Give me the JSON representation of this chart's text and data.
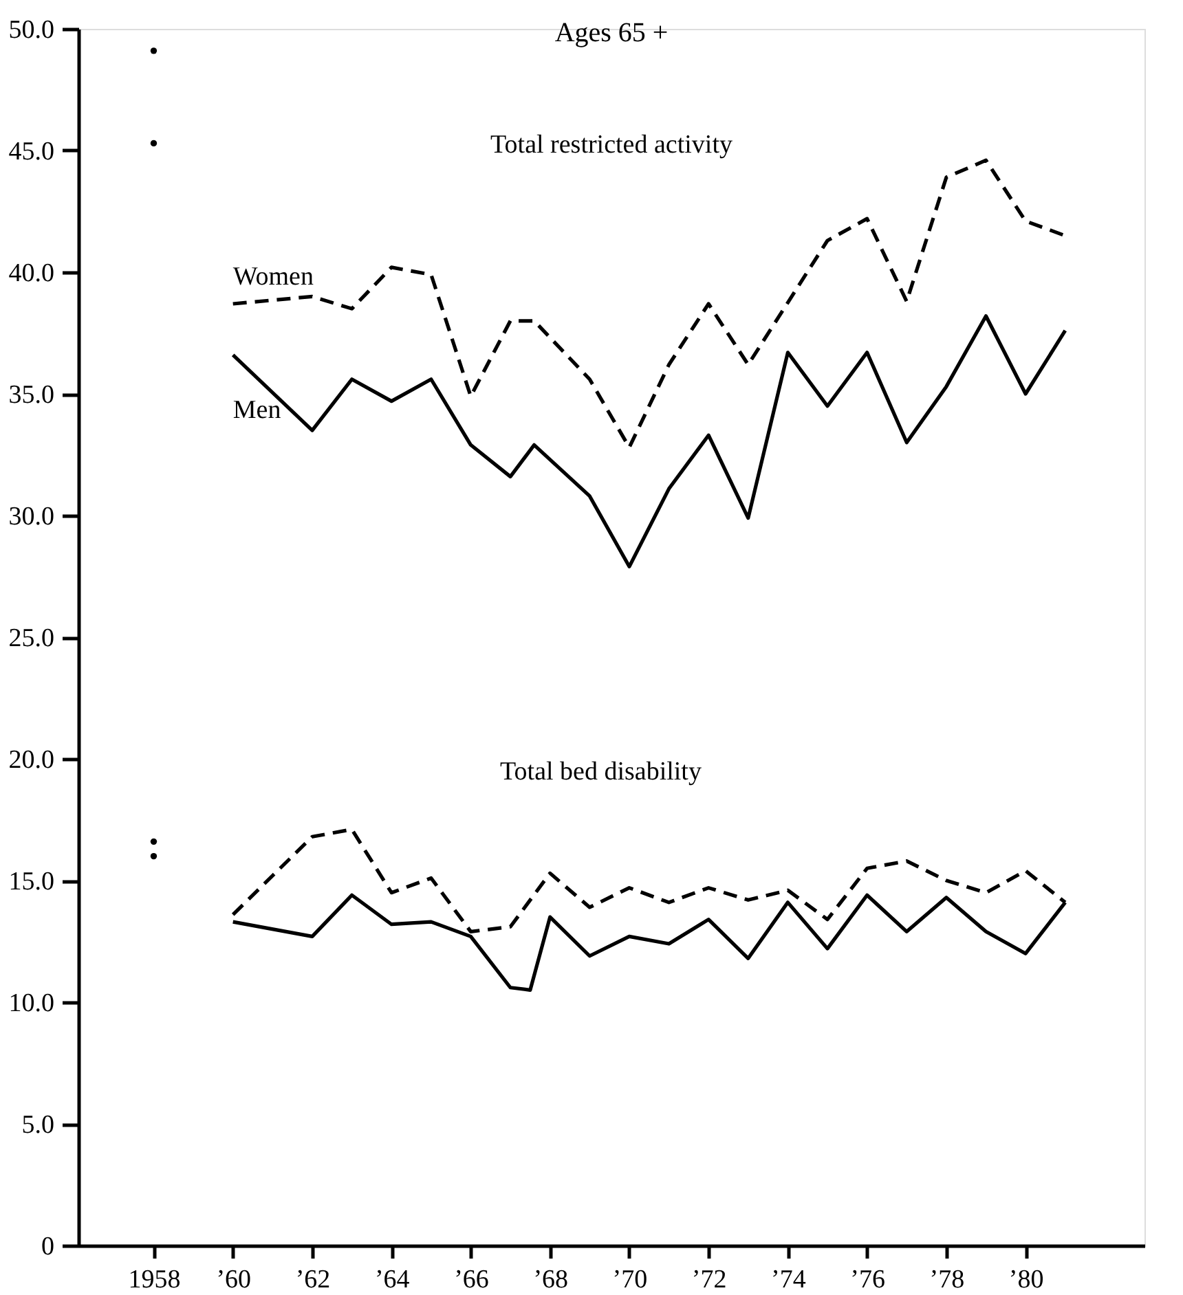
{
  "chart_data": {
    "type": "line",
    "title": "Ages 65 +",
    "xlim": [
      1956.1,
      1983
    ],
    "ylim": [
      0,
      50
    ],
    "xticks": [
      1958,
      {
        "value": 1960,
        "label": "’60"
      },
      {
        "value": 1962,
        "label": "’62"
      },
      {
        "value": 1964,
        "label": "’64"
      },
      {
        "value": 1966,
        "label": "’66"
      },
      {
        "value": 1968,
        "label": "’68"
      },
      {
        "value": 1970,
        "label": "’70"
      },
      {
        "value": 1972,
        "label": "’72"
      },
      {
        "value": 1974,
        "label": "’74"
      },
      {
        "value": 1976,
        "label": "’76"
      },
      {
        "value": 1978,
        "label": "’78"
      },
      {
        "value": 1980,
        "label": "’80"
      }
    ],
    "yticks": [
      0,
      {
        "value": 5,
        "label": "5.0"
      },
      {
        "value": 10,
        "label": "10.0"
      },
      {
        "value": 15,
        "label": "15.0"
      },
      {
        "value": 20,
        "label": "20.0"
      },
      {
        "value": 25,
        "label": "25.0"
      },
      {
        "value": 30,
        "label": "30.0"
      },
      {
        "value": 35,
        "label": "35.0"
      },
      {
        "value": 40,
        "label": "40.0"
      },
      {
        "value": 45,
        "label": "45.0"
      },
      {
        "value": 50,
        "label": "50.0"
      }
    ],
    "grid": false,
    "annotations": [
      "Total restricted activity",
      "Total bed disability"
    ],
    "series": [
      {
        "name": "Women",
        "color": "#000000",
        "line_style": "dashed",
        "x": [
          1960,
          1962,
          1963,
          1964,
          1965,
          1966,
          1967,
          1967.6,
          1969,
          1970,
          1971,
          1972,
          1973,
          1975,
          1976,
          1977,
          1978,
          1979,
          1980,
          1981
        ],
        "values": [
          38.7,
          39.0,
          38.5,
          40.2,
          39.9,
          34.9,
          38.0,
          38.0,
          35.6,
          32.8,
          36.2,
          38.7,
          36.2,
          41.3,
          42.2,
          38.8,
          43.9,
          44.6,
          42.1,
          41.5
        ]
      },
      {
        "name": "Men",
        "color": "#000000",
        "line_style": "solid",
        "x": [
          1960,
          1962,
          1963,
          1964,
          1965,
          1966,
          1967,
          1967.6,
          1968,
          1969,
          1970,
          1971,
          1972,
          1973,
          1974,
          1975,
          1976,
          1977,
          1978,
          1979,
          1980,
          1981
        ],
        "values": [
          36.6,
          33.5,
          35.6,
          34.7,
          35.6,
          32.9,
          31.6,
          32.9,
          32.3,
          30.8,
          27.9,
          31.1,
          33.3,
          29.9,
          36.7,
          34.5,
          36.7,
          33.0,
          35.3,
          38.2,
          35.0,
          37.6
        ]
      },
      {
        "color": "#000000",
        "line_style": "dashed",
        "x": [
          1960,
          1962,
          1963,
          1964,
          1965,
          1966,
          1967,
          1968,
          1969,
          1970,
          1971,
          1972,
          1973,
          1974,
          1975,
          1976,
          1977,
          1978,
          1979,
          1980,
          1981
        ],
        "values": [
          13.6,
          16.8,
          17.1,
          14.5,
          15.1,
          12.9,
          13.1,
          15.3,
          13.9,
          14.7,
          14.1,
          14.7,
          14.2,
          14.6,
          13.4,
          15.5,
          15.8,
          15.0,
          14.5,
          15.4,
          14.1
        ]
      },
      {
        "color": "#000000",
        "line_style": "solid",
        "x": [
          1960,
          1962,
          1963,
          1964,
          1965,
          1966,
          1967,
          1967.5,
          1968,
          1969,
          1970,
          1971,
          1972,
          1973,
          1974,
          1975,
          1976,
          1977,
          1978,
          1979,
          1980,
          1981
        ],
        "values": [
          13.3,
          12.7,
          14.4,
          13.2,
          13.3,
          12.7,
          10.6,
          10.5,
          13.5,
          11.9,
          12.7,
          12.4,
          13.4,
          11.8,
          14.1,
          12.2,
          14.4,
          12.9,
          14.3,
          12.9,
          12.0,
          14.1
        ]
      },
      {
        "color": "#000000",
        "type": "scatter",
        "marker": "circle",
        "x": [
          1958,
          1958
        ],
        "values": [
          49.1,
          16.6
        ]
      },
      {
        "color": "#000000",
        "type": "scatter",
        "marker": "circle",
        "x": [
          1958,
          1958
        ],
        "values": [
          45.3,
          16.0
        ]
      }
    ]
  }
}
